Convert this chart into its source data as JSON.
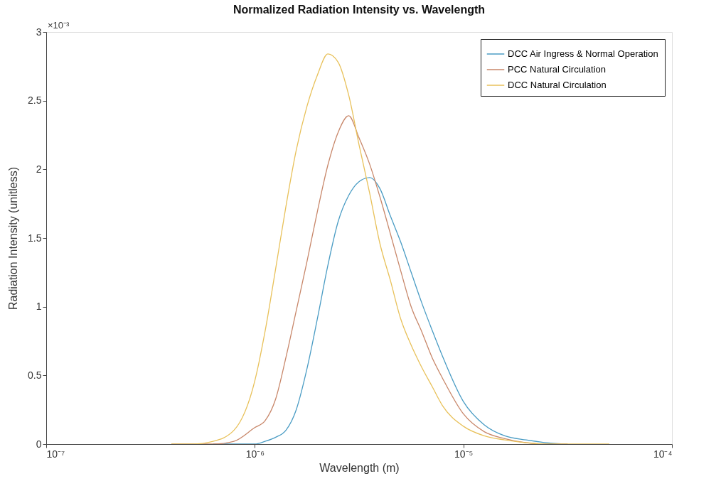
{
  "chart_data": {
    "type": "line",
    "title": "Normalized Radiation Intensity vs. Wavelength",
    "xlabel": "Wavelength (m)",
    "ylabel": "Radiation Intensity (unitless)",
    "annotations": [
      "×10⁻³"
    ],
    "x": [
      3.98e-07,
      5.01e-07,
      6.31e-07,
      7.94e-07,
      1e-06,
      1.12e-06,
      1.26e-06,
      1.41e-06,
      1.58e-06,
      1.78e-06,
      2e-06,
      2.24e-06,
      2.51e-06,
      2.82e-06,
      3.16e-06,
      3.55e-06,
      3.98e-06,
      4.47e-06,
      5.01e-06,
      5.62e-06,
      6.31e-06,
      7.08e-06,
      7.94e-06,
      1e-05,
      1.26e-05,
      1.58e-05,
      2e-05,
      2.51e-05,
      3.16e-05,
      3.98e-05,
      5.01e-05
    ],
    "series": [
      {
        "name": "DCC Air Ingress & Normal Operation",
        "color": "#4a9cc4",
        "values": [
          null,
          null,
          0,
          0,
          0,
          0.02,
          0.05,
          0.1,
          0.25,
          0.55,
          0.92,
          1.3,
          1.62,
          1.81,
          1.91,
          1.94,
          1.86,
          1.66,
          1.47,
          1.25,
          1.03,
          0.83,
          0.64,
          0.31,
          0.14,
          0.06,
          0.03,
          0.01,
          0,
          null,
          null
        ]
      },
      {
        "name": "PCC Natural Circulation",
        "color": "#c8876a",
        "values": [
          0,
          0,
          0,
          0.02,
          0.12,
          0.17,
          0.33,
          0.63,
          0.97,
          1.33,
          1.7,
          2.03,
          2.27,
          2.39,
          2.23,
          2.04,
          1.8,
          1.53,
          1.26,
          1.0,
          0.82,
          0.63,
          0.48,
          0.22,
          0.09,
          0.04,
          0.01,
          0,
          0,
          null,
          null
        ]
      },
      {
        "name": "DCC Natural Circulation",
        "color": "#e8c15a",
        "values": [
          0,
          0,
          0.02,
          0.1,
          0.46,
          0.82,
          1.28,
          1.73,
          2.14,
          2.46,
          2.69,
          2.84,
          2.78,
          2.54,
          2.18,
          1.83,
          1.46,
          1.19,
          0.91,
          0.72,
          0.56,
          0.42,
          0.28,
          0.13,
          0.06,
          0.03,
          0.01,
          0,
          0,
          0,
          0
        ]
      }
    ],
    "xlim": [
      1e-07,
      0.0001
    ],
    "xticks": [
      {
        "value": 1e-07,
        "label": "10⁻⁷"
      },
      {
        "value": 1e-06,
        "label": "10⁻⁶"
      },
      {
        "value": 1e-05,
        "label": "10⁻⁵"
      },
      {
        "value": 0.0001,
        "label": "10⁻⁴"
      }
    ],
    "ylim": [
      0,
      3
    ],
    "yticks": [
      0,
      0.5,
      1,
      1.5,
      2,
      2.5,
      3
    ],
    "log": "x",
    "grid": false,
    "legend": "top right",
    "line_style": "solid"
  }
}
